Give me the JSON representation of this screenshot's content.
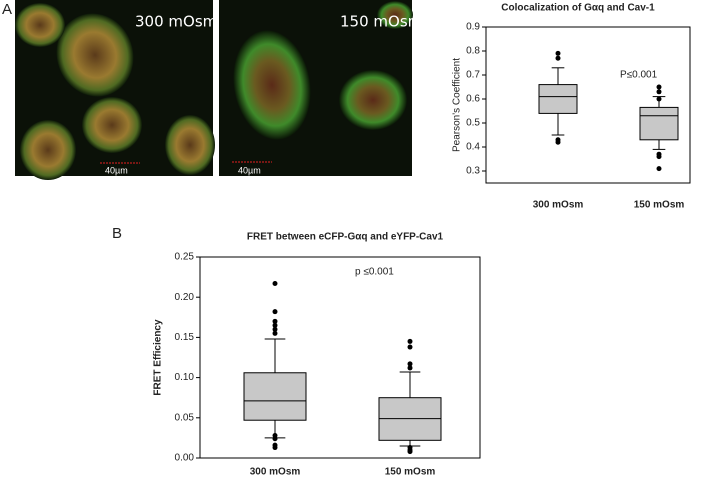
{
  "panel_labels": [
    "A",
    "B"
  ],
  "images": [
    {
      "label": "300 mOsm",
      "scale_bar": "40µm"
    },
    {
      "label": "150 mOsm",
      "scale_bar": "40µm"
    }
  ],
  "chart_data": [
    {
      "type": "box",
      "title": "Colocalization of Gαq and Cav-1",
      "y_label": "Pearson's Coefficient",
      "categories": [
        "300 mOsm",
        "150 mOsm"
      ],
      "color": "#c8c8c8",
      "annotation": "P≤0.001",
      "ylim": [
        0.25,
        0.9
      ],
      "yticks": [
        0.3,
        0.4,
        0.5,
        0.6,
        0.7,
        0.8,
        0.9
      ],
      "boxes": [
        {
          "whisker_low": 0.45,
          "q1": 0.54,
          "median": 0.61,
          "q3": 0.66,
          "whisker_high": 0.73,
          "outliers": [
            0.79,
            0.77,
            0.43,
            0.42
          ]
        },
        {
          "whisker_low": 0.39,
          "q1": 0.43,
          "median": 0.53,
          "q3": 0.565,
          "whisker_high": 0.61,
          "outliers": [
            0.65,
            0.63,
            0.6,
            0.37,
            0.36,
            0.31
          ]
        }
      ]
    },
    {
      "type": "box",
      "title": "FRET between eCFP-Gαq  and eYFP-Cav1",
      "y_label": "FRET Efficiency",
      "categories": [
        "300 mOsm",
        "150 mOsm"
      ],
      "color": "#c8c8c8",
      "annotation": "p ≤0.001",
      "ylim": [
        0,
        0.25
      ],
      "yticks": [
        {
          "value": 0,
          "label": "0.00"
        },
        {
          "value": 0.05,
          "label": "0.05"
        },
        {
          "value": 0.1,
          "label": "0.10"
        },
        {
          "value": 0.15,
          "label": "0.15"
        },
        {
          "value": 0.2,
          "label": "0.20"
        },
        {
          "value": 0.25,
          "label": "0.25"
        }
      ],
      "boxes": [
        {
          "whisker_low": 0.025,
          "q1": 0.047,
          "median": 0.071,
          "q3": 0.106,
          "whisker_high": 0.148,
          "outliers": [
            0.217,
            0.182,
            0.17,
            0.165,
            0.16,
            0.155,
            0.028,
            0.024,
            0.016,
            0.013
          ]
        },
        {
          "whisker_low": 0.015,
          "q1": 0.022,
          "median": 0.049,
          "q3": 0.075,
          "whisker_high": 0.107,
          "outliers": [
            0.145,
            0.138,
            0.117,
            0.112,
            0.013,
            0.01,
            0.008
          ]
        }
      ]
    }
  ]
}
